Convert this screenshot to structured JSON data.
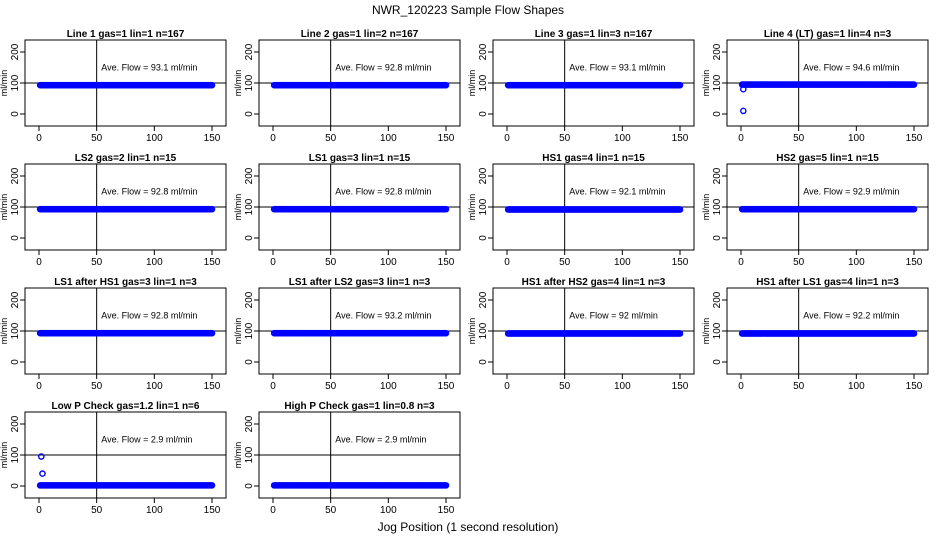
{
  "figure": {
    "title": "NWR_120223  Sample Flow Shapes",
    "xlabel": "Jog Position (1 second resolution)"
  },
  "chart_data": {
    "type": "scatter",
    "xlim": [
      0,
      150
    ],
    "ylim": [
      0,
      200
    ],
    "xticks": [
      0,
      50,
      100,
      150
    ],
    "yticks": [
      0,
      100,
      200
    ],
    "ylabel": "ml/min",
    "vline_x": 50,
    "hline_y": 100,
    "annotation_prefix": "Ave. Flow = ",
    "annotation_unit": "ml/min",
    "panels": [
      {
        "title": "Line 1 gas=1 lin=1 n=167",
        "ave_flow": "93.1",
        "baseline": 93,
        "early_points": []
      },
      {
        "title": "Line 2 gas=1 lin=2 n=167",
        "ave_flow": "92.8",
        "baseline": 93,
        "early_points": []
      },
      {
        "title": "Line 3 gas=1 lin=3 n=167",
        "ave_flow": "93.1",
        "baseline": 93,
        "early_points": []
      },
      {
        "title": "Line 4 (LT) gas=1 lin=4 n=3",
        "ave_flow": "94.6",
        "baseline": 95,
        "early_points": [
          [
            2,
            10
          ],
          [
            2,
            80
          ]
        ]
      },
      {
        "title": "LS2 gas=2 lin=1 n=15",
        "ave_flow": "92.8",
        "baseline": 93,
        "early_points": []
      },
      {
        "title": "LS1 gas=3 lin=1 n=15",
        "ave_flow": "92.8",
        "baseline": 93,
        "early_points": []
      },
      {
        "title": "HS1 gas=4 lin=1 n=15",
        "ave_flow": "92.1",
        "baseline": 92,
        "early_points": []
      },
      {
        "title": "HS2 gas=5 lin=1 n=15",
        "ave_flow": "92.9",
        "baseline": 93,
        "early_points": []
      },
      {
        "title": "LS1 after HS1 gas=3 lin=1 n=3",
        "ave_flow": "92.8",
        "baseline": 93,
        "early_points": []
      },
      {
        "title": "LS1 after LS2 gas=3 lin=1 n=3",
        "ave_flow": "93.2",
        "baseline": 93,
        "early_points": []
      },
      {
        "title": "HS1 after HS2 gas=4 lin=1 n=3",
        "ave_flow": "92",
        "baseline": 92,
        "early_points": []
      },
      {
        "title": "HS1 after LS1 gas=4 lin=1 n=3",
        "ave_flow": "92.2",
        "baseline": 92,
        "early_points": []
      },
      {
        "title": "Low P Check gas=1.2 lin=1 n=6",
        "ave_flow": "2.9",
        "baseline": 2,
        "early_points": [
          [
            2,
            95
          ],
          [
            3,
            40
          ]
        ]
      },
      {
        "title": "High P Check gas=1 lin=0.8 n=3",
        "ave_flow": "2.9",
        "baseline": 2,
        "early_points": []
      }
    ]
  },
  "colors": {
    "points": "#0000ff",
    "axes": "#000000"
  }
}
